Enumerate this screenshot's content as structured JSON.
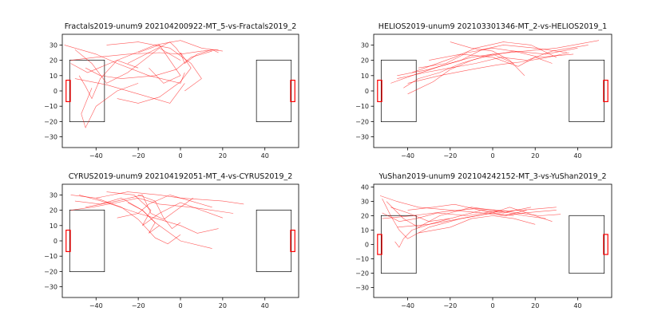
{
  "figure": {
    "background": "#ffffff",
    "line_color": "#ff0000",
    "field_color": "#000000"
  },
  "chart_data": [
    {
      "type": "line",
      "title": "Fractals2019-unum9  202104200922-MT_5-vs-Fractals2019_2",
      "xlim": [
        -56,
        56
      ],
      "ylim": [
        -37,
        37
      ],
      "xticks": [
        -40,
        -20,
        0,
        20,
        40
      ],
      "yticks": [
        -30,
        -20,
        -10,
        0,
        10,
        20,
        30
      ],
      "grid": false,
      "series": [
        {
          "x": [
            -52,
            -40,
            -25,
            -10,
            0,
            10,
            18
          ],
          "y": [
            20,
            22,
            24,
            25,
            24,
            26,
            27
          ]
        },
        {
          "x": [
            0,
            2,
            8,
            15,
            18
          ],
          "y": [
            25,
            18,
            24,
            27,
            25
          ]
        },
        {
          "x": [
            -50,
            -42,
            -35,
            -25,
            -10,
            0
          ],
          "y": [
            27,
            18,
            5,
            12,
            28,
            20
          ]
        },
        {
          "x": [
            -48,
            -45,
            -42,
            -38,
            -30,
            -20
          ],
          "y": [
            10,
            3,
            -5,
            8,
            20,
            15
          ]
        },
        {
          "x": [
            -55,
            -50,
            -40,
            -30,
            -15,
            0,
            2
          ],
          "y": [
            30,
            28,
            24,
            18,
            10,
            5,
            12
          ]
        },
        {
          "x": [
            -45,
            -38,
            -28,
            -12,
            -2,
            5,
            15
          ],
          "y": [
            15,
            10,
            8,
            10,
            14,
            22,
            26
          ]
        },
        {
          "x": [
            -42,
            -47,
            -45,
            -40,
            -30,
            -20
          ],
          "y": [
            2,
            -15,
            -24,
            -10,
            0,
            5
          ]
        },
        {
          "x": [
            -35,
            -20,
            -5,
            5,
            10,
            2
          ],
          "y": [
            30,
            32,
            28,
            18,
            8,
            0
          ]
        },
        {
          "x": [
            -50,
            -35,
            -20,
            -5,
            2
          ],
          "y": [
            8,
            4,
            -2,
            -8,
            5
          ]
        },
        {
          "x": [
            -20,
            -10,
            -5,
            0,
            -8,
            -15
          ],
          "y": [
            25,
            30,
            20,
            10,
            5,
            15
          ]
        },
        {
          "x": [
            -30,
            -20,
            -10,
            0,
            5,
            0
          ],
          "y": [
            -5,
            -8,
            -4,
            6,
            15,
            25
          ]
        },
        {
          "x": [
            -52,
            -44,
            -30,
            -12,
            0,
            10,
            20
          ],
          "y": [
            18,
            12,
            20,
            30,
            33,
            28,
            26
          ]
        },
        {
          "x": [
            -25,
            -15,
            -5,
            -2,
            0
          ],
          "y": [
            18,
            25,
            32,
            28,
            24
          ]
        }
      ]
    },
    {
      "type": "line",
      "title": "HELIOS2019-unum9  202103301346-MT_2-vs-HELIOS2019_1",
      "xlim": [
        -56,
        56
      ],
      "ylim": [
        -37,
        37
      ],
      "xticks": [
        -40,
        -20,
        0,
        20,
        40
      ],
      "yticks": [
        -30,
        -20,
        -10,
        0,
        10,
        20,
        30
      ],
      "grid": false,
      "series": [
        {
          "x": [
            -48,
            -38,
            -25,
            -10,
            0,
            15,
            30,
            50
          ],
          "y": [
            5,
            10,
            16,
            22,
            24,
            26,
            28,
            33
          ]
        },
        {
          "x": [
            -45,
            -30,
            -15,
            -5,
            5,
            20,
            35
          ],
          "y": [
            10,
            14,
            20,
            27,
            30,
            28,
            25
          ]
        },
        {
          "x": [
            -42,
            -35,
            -25,
            -15,
            -5,
            10,
            25,
            40
          ],
          "y": [
            2,
            8,
            12,
            18,
            22,
            26,
            24,
            28
          ]
        },
        {
          "x": [
            -40,
            -28,
            -20,
            -10,
            0,
            10
          ],
          "y": [
            -2,
            6,
            14,
            20,
            24,
            18
          ]
        },
        {
          "x": [
            -38,
            -30,
            -18,
            -8,
            5,
            18,
            30
          ],
          "y": [
            12,
            16,
            22,
            28,
            32,
            30,
            22
          ]
        },
        {
          "x": [
            -35,
            -22,
            -12,
            0,
            10,
            22,
            38
          ],
          "y": [
            15,
            18,
            25,
            28,
            26,
            22,
            24
          ]
        },
        {
          "x": [
            -20,
            -10,
            0,
            8,
            15
          ],
          "y": [
            32,
            28,
            26,
            20,
            10
          ]
        },
        {
          "x": [
            -45,
            -32,
            -20,
            -8,
            4,
            16,
            28,
            45
          ],
          "y": [
            8,
            12,
            15,
            18,
            22,
            20,
            26,
            30
          ]
        },
        {
          "x": [
            -30,
            -15,
            0,
            12,
            20,
            28
          ],
          "y": [
            20,
            24,
            22,
            16,
            22,
            18
          ]
        },
        {
          "x": [
            -40,
            -25,
            -10,
            2,
            14,
            26,
            36
          ],
          "y": [
            5,
            10,
            14,
            17,
            19,
            22,
            25
          ]
        }
      ]
    },
    {
      "type": "line",
      "title": "CYRUS2019-unum9  202104192051-MT_4-vs-CYRUS2019_2",
      "xlim": [
        -56,
        56
      ],
      "ylim": [
        -37,
        37
      ],
      "xticks": [
        -40,
        -20,
        0,
        20,
        40
      ],
      "yticks": [
        -30,
        -20,
        -10,
        0,
        10,
        20,
        30
      ],
      "grid": false,
      "series": [
        {
          "x": [
            -52,
            -40,
            -25,
            -10,
            0,
            10,
            20,
            30
          ],
          "y": [
            30,
            28,
            32,
            30,
            28,
            27,
            26,
            24
          ]
        },
        {
          "x": [
            -50,
            -38,
            -28,
            -18,
            -12,
            -15,
            -10
          ],
          "y": [
            26,
            24,
            28,
            20,
            12,
            5,
            10
          ]
        },
        {
          "x": [
            -48,
            -35,
            -20,
            -10,
            0,
            8,
            18
          ],
          "y": [
            30,
            25,
            18,
            14,
            10,
            5,
            8
          ]
        },
        {
          "x": [
            -45,
            -30,
            -18,
            -14,
            -8,
            -2,
            6
          ],
          "y": [
            22,
            26,
            30,
            18,
            14,
            20,
            28
          ]
        },
        {
          "x": [
            -40,
            -28,
            -20,
            -16,
            -12,
            -6,
            0
          ],
          "y": [
            28,
            22,
            14,
            8,
            2,
            -2,
            4
          ]
        },
        {
          "x": [
            -35,
            -22,
            -14,
            -18,
            -10,
            0,
            10,
            20
          ],
          "y": [
            32,
            30,
            20,
            10,
            18,
            25,
            20,
            15
          ]
        },
        {
          "x": [
            -30,
            -20,
            -15,
            -5,
            5,
            15
          ],
          "y": [
            15,
            18,
            24,
            30,
            26,
            22
          ]
        },
        {
          "x": [
            -25,
            -18,
            -12,
            -5,
            0,
            15
          ],
          "y": [
            25,
            20,
            12,
            5,
            0,
            -5
          ]
        },
        {
          "x": [
            -20,
            -12,
            -8,
            -4,
            0
          ],
          "y": [
            30,
            26,
            15,
            8,
            12
          ]
        },
        {
          "x": [
            -52,
            -42,
            -30,
            -20,
            -10,
            5,
            25
          ],
          "y": [
            20,
            22,
            25,
            28,
            24,
            22,
            18
          ]
        }
      ]
    },
    {
      "type": "line",
      "title": "YuShan2019-unum9  202104242152-MT_3-vs-YuShan2019_2",
      "xlim": [
        -56,
        56
      ],
      "ylim": [
        -37,
        42
      ],
      "xticks": [
        -40,
        -20,
        0,
        20,
        40
      ],
      "yticks": [
        -30,
        -20,
        -10,
        0,
        10,
        20,
        30,
        40
      ],
      "grid": false,
      "series": [
        {
          "x": [
            -53,
            -45,
            -35,
            -20,
            -5,
            5,
            15,
            30
          ],
          "y": [
            34,
            30,
            26,
            24,
            22,
            20,
            22,
            24
          ]
        },
        {
          "x": [
            -52,
            -48,
            -44,
            -40,
            -30,
            -15,
            0,
            10
          ],
          "y": [
            32,
            20,
            10,
            4,
            12,
            18,
            22,
            20
          ]
        },
        {
          "x": [
            -50,
            -42,
            -35,
            -25,
            -10,
            0,
            15,
            25
          ],
          "y": [
            30,
            18,
            12,
            20,
            26,
            24,
            20,
            18
          ]
        },
        {
          "x": [
            -48,
            -40,
            -30,
            -20,
            -5,
            5,
            18
          ],
          "y": [
            26,
            22,
            16,
            18,
            24,
            22,
            26
          ]
        },
        {
          "x": [
            -46,
            -44,
            -42,
            -38,
            -30,
            -20
          ],
          "y": [
            2,
            -2,
            4,
            10,
            14,
            18
          ]
        },
        {
          "x": [
            -52,
            -38,
            -22,
            -8,
            2,
            12,
            22,
            32
          ],
          "y": [
            18,
            20,
            23,
            25,
            24,
            22,
            20,
            21
          ]
        },
        {
          "x": [
            -45,
            -30,
            -15,
            0,
            8,
            20,
            28
          ],
          "y": [
            12,
            14,
            18,
            22,
            26,
            20,
            16
          ]
        },
        {
          "x": [
            -40,
            -28,
            -18,
            -6,
            6,
            16
          ],
          "y": [
            24,
            26,
            28,
            24,
            20,
            24
          ]
        },
        {
          "x": [
            -35,
            -20,
            -10,
            0,
            10,
            20
          ],
          "y": [
            8,
            12,
            18,
            20,
            18,
            14
          ]
        },
        {
          "x": [
            -52,
            -44,
            -36,
            -26,
            -12,
            0,
            14,
            30
          ],
          "y": [
            22,
            16,
            18,
            22,
            20,
            23,
            24,
            26
          ]
        }
      ]
    }
  ]
}
